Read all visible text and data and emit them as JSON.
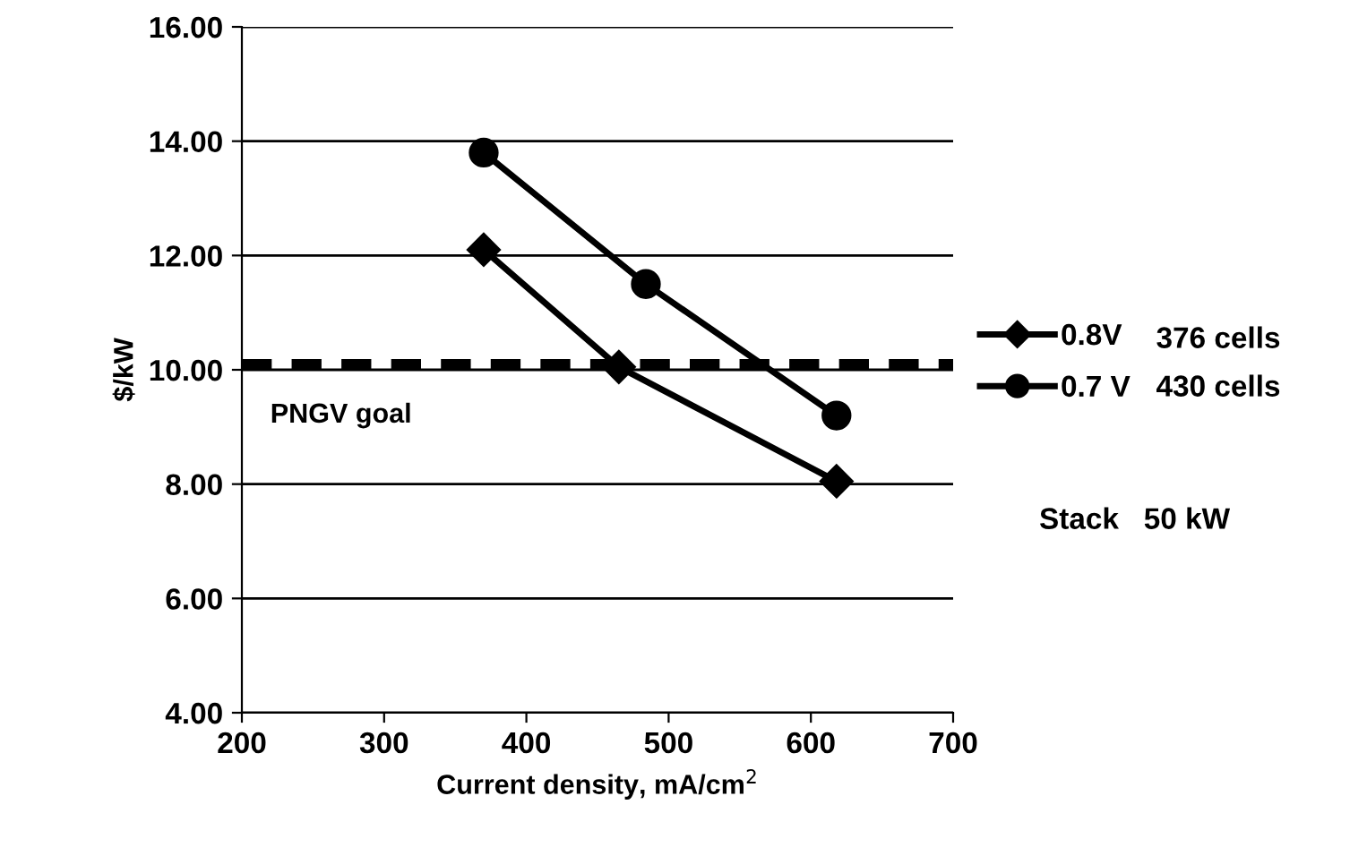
{
  "chart_data": {
    "type": "line",
    "xlabel": "Current density, mA/cm$^{2}$",
    "ylabel": "$/kW",
    "xlim": [
      200,
      700
    ],
    "xticks": [
      200,
      300,
      400,
      500,
      600,
      700
    ],
    "ylim": [
      4,
      16
    ],
    "yticks": [
      {
        "value": 4,
        "label": "4.00"
      },
      {
        "value": 6,
        "label": "6.00"
      },
      {
        "value": 8,
        "label": "8.00"
      },
      {
        "value": 10,
        "label": "10.00"
      },
      {
        "value": 12,
        "label": "12.00"
      },
      {
        "value": 14,
        "label": "14.00"
      },
      {
        "value": 16,
        "label": "16.00"
      }
    ],
    "grid": "y",
    "legend": "right",
    "line_style": "solid",
    "series": [
      {
        "name": "0.8V",
        "color": "#000000",
        "marker": "diamond",
        "x": [
          370,
          465,
          618
        ],
        "values": [
          12.1,
          10.05,
          8.05
        ]
      },
      {
        "name": "0.7 V",
        "color": "#000000",
        "marker": "circle",
        "x": [
          370,
          484,
          618
        ],
        "values": [
          13.8,
          11.5,
          9.2
        ]
      }
    ],
    "ref_lines": [
      {
        "axis": "y",
        "value": 10.1,
        "label": "PNGV goal",
        "color": "#000000",
        "line_style": "dashed"
      }
    ],
    "annotations": [
      "376 cells",
      "430 cells",
      "Stack   50 kW"
    ]
  }
}
